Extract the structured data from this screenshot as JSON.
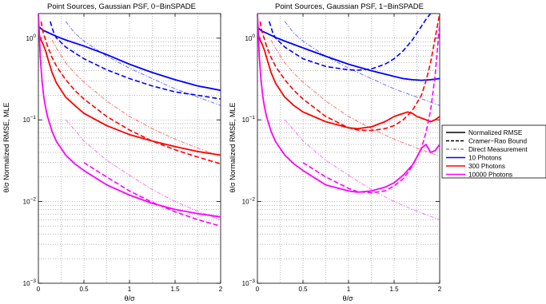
{
  "chart_data": [
    {
      "type": "line",
      "title": "Point Sources, Gaussian PSF, 0−BinSPADE",
      "xlabel": "θ/σ",
      "ylabel": "θ/σ Normalized RMSE, MLE",
      "xlim": [
        0,
        2
      ],
      "ylim": [
        0.001,
        2
      ],
      "yscale": "log",
      "grid": true,
      "xticks": [
        "0",
        "0.5",
        "1",
        "1.5",
        "2"
      ],
      "series": [
        {
          "photons": "10 Photons",
          "kind": "Normalized RMSE",
          "color": "#0000ff",
          "x": [
            0.0,
            0.05,
            0.1,
            0.2,
            0.3,
            0.5,
            0.75,
            1.0,
            1.25,
            1.5,
            1.75,
            2.0
          ],
          "y": [
            1.4,
            1.25,
            1.18,
            1.05,
            0.95,
            0.8,
            0.63,
            0.48,
            0.38,
            0.31,
            0.26,
            0.23
          ]
        },
        {
          "photons": "10 Photons",
          "kind": "Cramer−Rao Bound",
          "color": "#0000ff",
          "x": [
            0.13,
            0.17,
            0.2,
            0.3,
            0.4,
            0.5,
            0.75,
            1.0,
            1.25,
            1.5,
            1.75,
            2.0
          ],
          "y": [
            1.6,
            1.15,
            1.0,
            0.78,
            0.66,
            0.56,
            0.41,
            0.32,
            0.26,
            0.22,
            0.2,
            0.18
          ]
        },
        {
          "photons": "10 Photons",
          "kind": "Direct Measurement",
          "color": "#0000ff",
          "x": [
            0.3,
            0.4,
            0.5,
            0.75,
            1.0,
            1.25,
            1.5,
            1.75,
            2.0
          ],
          "y": [
            1.6,
            1.15,
            0.92,
            0.6,
            0.43,
            0.32,
            0.24,
            0.19,
            0.15
          ]
        },
        {
          "photons": "300 Photons",
          "kind": "Normalized RMSE",
          "color": "#ff0000",
          "x": [
            0.0,
            0.02,
            0.05,
            0.08,
            0.1,
            0.15,
            0.2,
            0.3,
            0.4,
            0.5,
            0.75,
            1.0,
            1.25,
            1.5,
            1.75,
            2.0
          ],
          "y": [
            1.2,
            1.0,
            0.85,
            0.7,
            0.58,
            0.38,
            0.28,
            0.19,
            0.15,
            0.12,
            0.085,
            0.066,
            0.055,
            0.047,
            0.041,
            0.037
          ]
        },
        {
          "photons": "300 Photons",
          "kind": "Cramer−Rao Bound",
          "color": "#ff0000",
          "x": [
            0.03,
            0.05,
            0.08,
            0.1,
            0.15,
            0.2,
            0.3,
            0.4,
            0.5,
            0.75,
            1.0,
            1.25,
            1.5,
            1.75,
            2.0
          ],
          "y": [
            1.6,
            1.2,
            0.95,
            0.8,
            0.58,
            0.45,
            0.31,
            0.23,
            0.18,
            0.11,
            0.075,
            0.055,
            0.043,
            0.035,
            0.029
          ]
        },
        {
          "photons": "300 Photons",
          "kind": "Direct Measurement",
          "color": "#ff0000",
          "x": [
            0.15,
            0.2,
            0.3,
            0.4,
            0.5,
            0.75,
            1.0,
            1.25,
            1.5,
            1.75,
            2.0
          ],
          "y": [
            0.95,
            0.75,
            0.5,
            0.37,
            0.29,
            0.17,
            0.11,
            0.078,
            0.058,
            0.045,
            0.036
          ]
        },
        {
          "photons": "10000 Photons",
          "kind": "Normalized RMSE",
          "color": "#ff00ff",
          "x": [
            0.0,
            0.01,
            0.02,
            0.04,
            0.06,
            0.08,
            0.1,
            0.15,
            0.2,
            0.3,
            0.4,
            0.5,
            0.75,
            1.0,
            1.25,
            1.5,
            1.75,
            2.0
          ],
          "y": [
            2.0,
            1.2,
            0.6,
            0.3,
            0.19,
            0.14,
            0.11,
            0.072,
            0.054,
            0.037,
            0.029,
            0.024,
            0.016,
            0.012,
            0.0095,
            0.008,
            0.0071,
            0.0065
          ]
        },
        {
          "photons": "10000 Photons",
          "kind": "Cramer−Rao Bound",
          "color": "#ff00ff",
          "x": [
            0.5,
            0.75,
            1.0,
            1.25,
            1.5,
            1.75,
            2.0
          ],
          "y": [
            0.03,
            0.02,
            0.0135,
            0.0098,
            0.0075,
            0.006,
            0.005
          ]
        },
        {
          "photons": "10000 Photons",
          "kind": "Direct Measurement",
          "color": "#ff00ff",
          "x": [
            0.3,
            0.4,
            0.5,
            0.75,
            1.0,
            1.25,
            1.5,
            1.75,
            2.0
          ],
          "y": [
            0.1,
            0.075,
            0.055,
            0.032,
            0.021,
            0.014,
            0.01,
            0.0076,
            0.006
          ]
        }
      ]
    },
    {
      "type": "line",
      "title": "Point Sources, Gaussian PSF, 1−BinSPADE",
      "xlabel": "θ/σ",
      "ylabel": "θ/σ Normalized RMSE, MLE",
      "xlim": [
        0,
        2
      ],
      "ylim": [
        0.001,
        2
      ],
      "yscale": "log",
      "grid": true,
      "xticks": [
        "0",
        "0.5",
        "1",
        "1.5",
        "2"
      ],
      "series": [
        {
          "photons": "10 Photons",
          "kind": "Normalized RMSE",
          "color": "#0000ff",
          "x": [
            0.0,
            0.05,
            0.1,
            0.2,
            0.3,
            0.5,
            0.75,
            1.0,
            1.25,
            1.5,
            1.6,
            1.7,
            1.8,
            1.9,
            2.0
          ],
          "y": [
            1.35,
            1.22,
            1.15,
            1.02,
            0.92,
            0.76,
            0.6,
            0.48,
            0.4,
            0.34,
            0.32,
            0.31,
            0.305,
            0.31,
            0.32
          ]
        },
        {
          "photons": "10 Photons",
          "kind": "Cramer−Rao Bound",
          "color": "#0000ff",
          "x": [
            0.13,
            0.17,
            0.2,
            0.3,
            0.4,
            0.5,
            0.75,
            1.0,
            1.1,
            1.25,
            1.4,
            1.5,
            1.6,
            1.7,
            1.8,
            1.85,
            1.9
          ],
          "y": [
            1.6,
            1.15,
            1.0,
            0.78,
            0.66,
            0.56,
            0.45,
            0.41,
            0.405,
            0.42,
            0.48,
            0.56,
            0.7,
            0.95,
            1.4,
            1.7,
            2.0
          ]
        },
        {
          "photons": "10 Photons",
          "kind": "Direct Measurement",
          "color": "#0000ff",
          "x": [
            0.3,
            0.4,
            0.5,
            0.75,
            1.0,
            1.25,
            1.5,
            1.75,
            2.0
          ],
          "y": [
            1.6,
            1.15,
            0.92,
            0.6,
            0.43,
            0.32,
            0.24,
            0.19,
            0.15
          ]
        },
        {
          "photons": "300 Photons",
          "kind": "Normalized RMSE",
          "color": "#ff0000",
          "x": [
            0.0,
            0.02,
            0.05,
            0.08,
            0.1,
            0.15,
            0.2,
            0.3,
            0.4,
            0.5,
            0.75,
            1.0,
            1.1,
            1.25,
            1.4,
            1.5,
            1.6,
            1.65,
            1.7,
            1.75,
            1.8,
            1.85,
            1.9,
            1.95,
            2.0
          ],
          "y": [
            1.2,
            1.0,
            0.85,
            0.7,
            0.58,
            0.38,
            0.28,
            0.19,
            0.15,
            0.125,
            0.095,
            0.08,
            0.078,
            0.082,
            0.095,
            0.11,
            0.12,
            0.125,
            0.12,
            0.11,
            0.105,
            0.1,
            0.095,
            0.1,
            0.11
          ]
        },
        {
          "photons": "300 Photons",
          "kind": "Cramer−Rao Bound",
          "color": "#ff0000",
          "x": [
            0.03,
            0.05,
            0.08,
            0.1,
            0.15,
            0.2,
            0.3,
            0.4,
            0.5,
            0.75,
            1.0,
            1.1,
            1.25,
            1.4,
            1.5,
            1.6,
            1.7,
            1.8,
            1.85,
            1.9,
            1.95,
            2.0
          ],
          "y": [
            1.6,
            1.2,
            0.95,
            0.8,
            0.58,
            0.45,
            0.31,
            0.23,
            0.18,
            0.11,
            0.08,
            0.075,
            0.074,
            0.078,
            0.085,
            0.1,
            0.13,
            0.2,
            0.3,
            0.5,
            1.0,
            2.0
          ]
        },
        {
          "photons": "300 Photons",
          "kind": "Direct Measurement",
          "color": "#ff0000",
          "x": [
            0.15,
            0.2,
            0.3,
            0.4,
            0.5,
            0.75,
            1.0,
            1.25,
            1.5,
            1.75,
            2.0
          ],
          "y": [
            0.95,
            0.75,
            0.5,
            0.37,
            0.29,
            0.17,
            0.11,
            0.078,
            0.058,
            0.045,
            0.036
          ]
        },
        {
          "photons": "10000 Photons",
          "kind": "Normalized RMSE",
          "color": "#ff00ff",
          "x": [
            0.0,
            0.01,
            0.02,
            0.04,
            0.06,
            0.08,
            0.1,
            0.15,
            0.2,
            0.3,
            0.4,
            0.5,
            0.75,
            1.0,
            1.1,
            1.25,
            1.4,
            1.5,
            1.6,
            1.7,
            1.75,
            1.8,
            1.85,
            1.9,
            1.95,
            2.0
          ],
          "y": [
            2.0,
            1.2,
            0.6,
            0.3,
            0.19,
            0.14,
            0.11,
            0.072,
            0.054,
            0.037,
            0.029,
            0.024,
            0.016,
            0.0135,
            0.013,
            0.0135,
            0.015,
            0.017,
            0.021,
            0.028,
            0.035,
            0.045,
            0.05,
            0.04,
            0.042,
            0.05
          ]
        },
        {
          "photons": "10000 Photons",
          "kind": "Cramer−Rao Bound",
          "color": "#ff00ff",
          "x": [
            0.5,
            0.75,
            1.0,
            1.1,
            1.25,
            1.4,
            1.5,
            1.6,
            1.7,
            1.8,
            1.85,
            1.9,
            1.95,
            2.0
          ],
          "y": [
            0.03,
            0.02,
            0.0145,
            0.0132,
            0.0128,
            0.0135,
            0.0155,
            0.019,
            0.027,
            0.045,
            0.07,
            0.13,
            0.35,
            1.5
          ]
        },
        {
          "photons": "10000 Photons",
          "kind": "Direct Measurement",
          "color": "#ff00ff",
          "x": [
            0.3,
            0.4,
            0.5,
            0.75,
            1.0,
            1.25,
            1.5,
            1.75,
            2.0
          ],
          "y": [
            0.1,
            0.075,
            0.055,
            0.032,
            0.021,
            0.014,
            0.01,
            0.0076,
            0.006
          ]
        }
      ]
    }
  ],
  "legend": {
    "placement": "right, between panels",
    "entries": [
      {
        "label": "Normalized RMSE",
        "style": "solid",
        "color": "#000000"
      },
      {
        "label": "Cramer−Rao Bound",
        "style": "dashed",
        "color": "#000000"
      },
      {
        "label": "Direct Measurement",
        "style": "dashdot",
        "color": "#000000"
      },
      {
        "label": "10 Photons",
        "style": "solid",
        "color": "#0000ff"
      },
      {
        "label": "300 Photons",
        "style": "solid",
        "color": "#ff0000"
      },
      {
        "label": "10000 Photons",
        "style": "solid",
        "color": "#ff00ff"
      }
    ]
  },
  "yticks": [
    "10⁻³",
    "10⁻²",
    "10⁻¹",
    "10⁰"
  ]
}
